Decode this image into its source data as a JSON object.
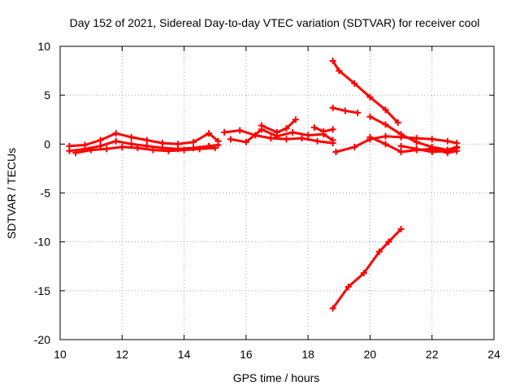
{
  "chart_data": {
    "type": "scatter",
    "title": "Day 152 of 2021, Sidereal Day-to-day VTEC variation (SDTVAR) for receiver cool",
    "xlabel": "GPS time / hours",
    "ylabel": "SDTVAR / TECUs",
    "xlim": [
      10,
      24
    ],
    "ylim": [
      -20,
      10
    ],
    "xticks": [
      10,
      12,
      14,
      16,
      18,
      20,
      22,
      24
    ],
    "yticks": [
      -20,
      -15,
      -10,
      -5,
      0,
      5,
      10
    ],
    "xtick_labels": [
      "10",
      "12",
      "14",
      "16",
      "18",
      "20",
      "22",
      "24"
    ],
    "ytick_labels": [
      "-20",
      "-15",
      "-10",
      "-5",
      "0",
      "5",
      "10"
    ],
    "grid": true,
    "marker": "+",
    "color": "#ff0000",
    "series": [
      {
        "name": "track-1",
        "x": [
          10.3,
          10.8,
          11.3,
          11.8,
          12.3,
          12.8,
          13.3,
          13.8,
          14.3,
          14.8,
          15.1
        ],
        "y": [
          -0.7,
          -0.5,
          -0.2,
          0.3,
          0.0,
          -0.2,
          -0.4,
          -0.5,
          -0.4,
          -0.2,
          -0.1
        ]
      },
      {
        "name": "track-2",
        "x": [
          10.3,
          10.8,
          11.3,
          11.8,
          12.3,
          12.8,
          13.3,
          13.8,
          14.3,
          14.8,
          15.1
        ],
        "y": [
          -0.2,
          -0.1,
          0.4,
          1.1,
          0.7,
          0.4,
          0.1,
          0.0,
          0.2,
          1.1,
          0.3
        ]
      },
      {
        "name": "track-3",
        "x": [
          10.5,
          11.0,
          11.5,
          12.0,
          12.5,
          13.0,
          13.5,
          14.0,
          14.5,
          15.0
        ],
        "y": [
          -0.9,
          -0.6,
          -0.5,
          -0.3,
          -0.4,
          -0.6,
          -0.7,
          -0.6,
          -0.5,
          -0.4
        ]
      },
      {
        "name": "track-4",
        "x": [
          15.3,
          15.8,
          16.3,
          16.8,
          17.3,
          17.8,
          18.3,
          18.8
        ],
        "y": [
          1.2,
          1.4,
          0.9,
          0.6,
          0.5,
          0.6,
          0.3,
          0.1
        ]
      },
      {
        "name": "track-5",
        "x": [
          15.5,
          16.0,
          16.5,
          17.0,
          17.5,
          18.0,
          18.5,
          18.8
        ],
        "y": [
          0.5,
          0.2,
          1.5,
          0.8,
          1.2,
          0.9,
          1.0,
          0.4
        ]
      },
      {
        "name": "track-6",
        "x": [
          16.5,
          17.0,
          17.3,
          17.6
        ],
        "y": [
          1.9,
          1.2,
          1.6,
          2.5
        ]
      },
      {
        "name": "track-7",
        "x": [
          18.2,
          18.5,
          18.8
        ],
        "y": [
          1.7,
          1.3,
          1.5
        ]
      },
      {
        "name": "track-8",
        "x": [
          18.8,
          19.0,
          19.5,
          20.0,
          20.5,
          20.9
        ],
        "y": [
          8.5,
          7.5,
          6.2,
          4.8,
          3.5,
          2.2
        ]
      },
      {
        "name": "track-9",
        "x": [
          18.8,
          19.2,
          19.6
        ],
        "y": [
          3.7,
          3.4,
          3.2
        ]
      },
      {
        "name": "track-10",
        "x": [
          20.0,
          20.5,
          21.0,
          21.5,
          22.0,
          22.5,
          22.8
        ],
        "y": [
          2.8,
          2.0,
          1.0,
          0.2,
          -0.3,
          -0.6,
          -0.3
        ]
      },
      {
        "name": "track-11",
        "x": [
          18.9,
          19.5,
          20.0,
          20.5,
          21.0,
          21.5,
          22.0,
          22.5,
          22.8
        ],
        "y": [
          -0.8,
          -0.3,
          0.5,
          0.8,
          0.7,
          0.6,
          0.5,
          0.3,
          0.1
        ]
      },
      {
        "name": "track-12",
        "x": [
          20.0,
          20.5,
          21.0,
          21.5,
          22.0,
          22.5,
          22.8
        ],
        "y": [
          0.7,
          0.0,
          -0.8,
          -0.6,
          -0.5,
          -0.9,
          -0.7
        ]
      },
      {
        "name": "track-13",
        "x": [
          21.0,
          21.5,
          22.0,
          22.5,
          22.8
        ],
        "y": [
          -0.2,
          -0.5,
          -0.8,
          -0.7,
          -0.4
        ]
      },
      {
        "name": "track-14",
        "x": [
          18.8,
          19.3,
          19.8,
          20.3,
          20.6,
          21.0
        ],
        "y": [
          -16.8,
          -14.6,
          -13.2,
          -11.0,
          -10.0,
          -8.7
        ]
      }
    ]
  }
}
